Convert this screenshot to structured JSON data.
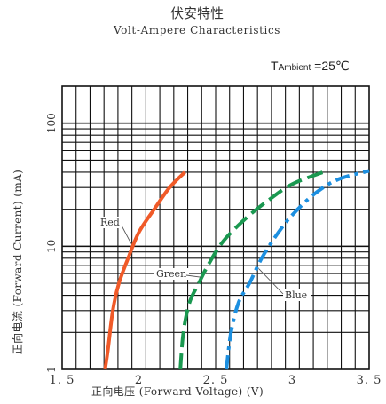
{
  "chart_data": {
    "type": "line",
    "title": "伏安特性",
    "subtitle": "Volt-Ampere Characteristics",
    "ambient": {
      "symbol": "T",
      "subscript": "Ambient",
      "value": " =25℃"
    },
    "xlabel": "正向电压 (Forward Voltage) (V)",
    "ylabel": "正向电流 (Forward Current) (mA)",
    "x_ticks": [
      "1. 5",
      "2",
      "2. 5",
      "3",
      "3. 5"
    ],
    "x_tick_values": [
      1.5,
      2.0,
      2.5,
      3.0,
      3.5
    ],
    "y_ticks": [
      "1",
      "10",
      "100"
    ],
    "y_tick_values": [
      1,
      10,
      100
    ],
    "xlim": [
      1.5,
      3.5
    ],
    "ylim": [
      1,
      200
    ],
    "y_scale": "log",
    "grid": true,
    "series": [
      {
        "name": "Red",
        "color": "#F05A28",
        "style": "solid",
        "points": [
          [
            1.78,
            1.0
          ],
          [
            1.8,
            1.5
          ],
          [
            1.83,
            3.0
          ],
          [
            1.87,
            5.0
          ],
          [
            1.93,
            8.0
          ],
          [
            2.0,
            13.0
          ],
          [
            2.1,
            20.0
          ],
          [
            2.2,
            30.0
          ],
          [
            2.3,
            40.0
          ]
        ]
      },
      {
        "name": "Green",
        "color": "#1A9850",
        "style": "dashed",
        "points": [
          [
            2.27,
            1.0
          ],
          [
            2.29,
            2.0
          ],
          [
            2.33,
            3.5
          ],
          [
            2.39,
            5.0
          ],
          [
            2.45,
            7.0
          ],
          [
            2.55,
            11.0
          ],
          [
            2.7,
            17.0
          ],
          [
            2.85,
            24.0
          ],
          [
            3.0,
            32.0
          ],
          [
            3.2,
            40.0
          ]
        ]
      },
      {
        "name": "Blue",
        "color": "#1C8FE0",
        "style": "dashdot",
        "points": [
          [
            2.57,
            1.0
          ],
          [
            2.6,
            2.0
          ],
          [
            2.65,
            3.5
          ],
          [
            2.72,
            5.0
          ],
          [
            2.8,
            8.0
          ],
          [
            2.9,
            12.5
          ],
          [
            3.0,
            18.0
          ],
          [
            3.15,
            27.0
          ],
          [
            3.3,
            35.0
          ],
          [
            3.5,
            41.0
          ]
        ]
      }
    ],
    "annotations": [
      {
        "text": "Red",
        "series": "Red"
      },
      {
        "text": "Green",
        "series": "Green"
      },
      {
        "text": "Blue",
        "series": "Blue"
      }
    ]
  }
}
